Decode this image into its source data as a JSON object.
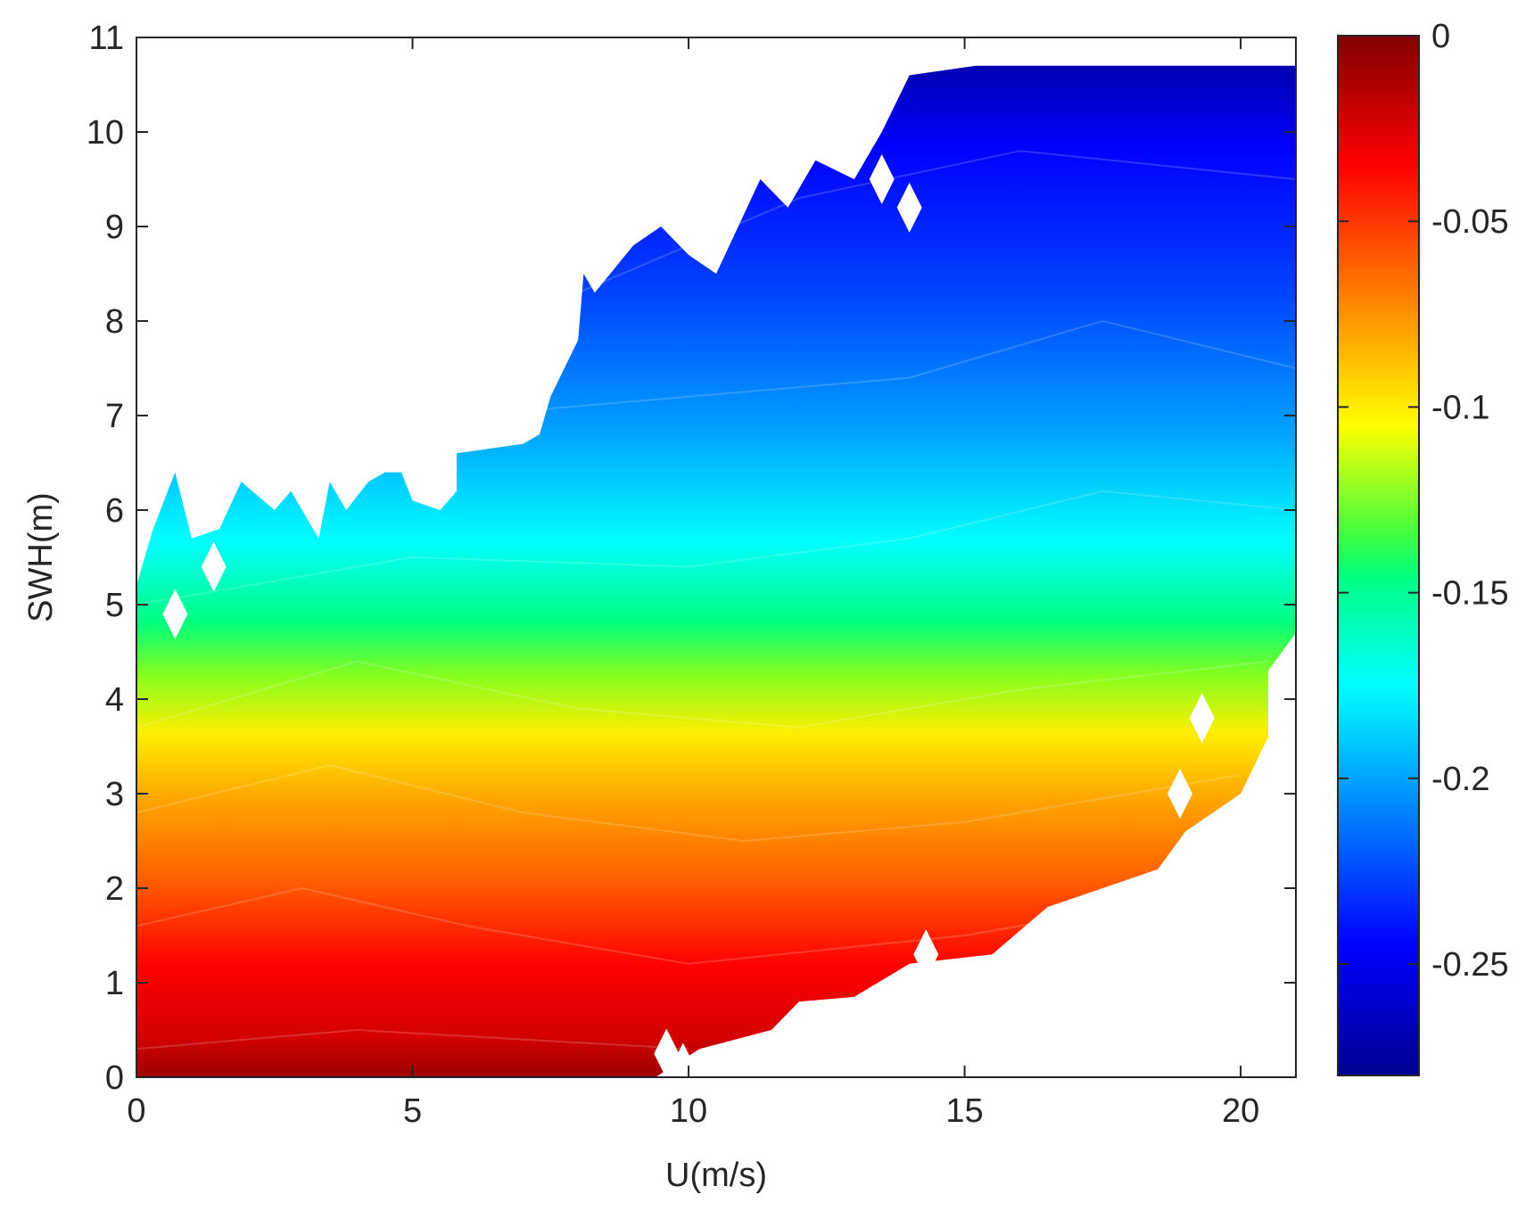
{
  "chart_data": {
    "type": "heatmap",
    "title": "",
    "xlabel": "U(m/s)",
    "ylabel": "SWH(m)",
    "xlim": [
      0,
      21
    ],
    "ylim": [
      0,
      11
    ],
    "x_ticks": [
      0,
      5,
      10,
      15,
      20
    ],
    "y_ticks": [
      0,
      1,
      2,
      3,
      4,
      5,
      6,
      7,
      8,
      9,
      10,
      11
    ],
    "grid": false,
    "colormap": "jet",
    "colorbar": {
      "range": [
        -0.28,
        0
      ],
      "ticks": [
        0,
        -0.05,
        -0.1,
        -0.15,
        -0.2,
        -0.25
      ],
      "tick_labels": [
        "0",
        "-0.05",
        "-0.1",
        "-0.15",
        "-0.2",
        "-0.25"
      ],
      "colors": [
        "#00008f",
        "#0000ff",
        "#00ffff",
        "#ffff00",
        "#ff0000",
        "#800000"
      ]
    },
    "contour_field": {
      "description_of_values": "filled contours of value vs U (x) and SWH (y); value shown as contour of SWH level per wind speed",
      "iso_lines": [
        {
          "value": -0.01,
          "swh": [
            {
              "u": 0,
              "y": 0.3
            },
            {
              "u": 4,
              "y": 0.5
            },
            {
              "u": 10,
              "y": 0.3
            }
          ]
        },
        {
          "value": -0.04,
          "swh": [
            {
              "u": 0,
              "y": 1.6
            },
            {
              "u": 3,
              "y": 2.0
            },
            {
              "u": 6,
              "y": 1.6
            },
            {
              "u": 10,
              "y": 1.2
            },
            {
              "u": 15,
              "y": 1.5
            },
            {
              "u": 20,
              "y": 2.0
            }
          ]
        },
        {
          "value": -0.08,
          "swh": [
            {
              "u": 0,
              "y": 2.8
            },
            {
              "u": 3.5,
              "y": 3.3
            },
            {
              "u": 7,
              "y": 2.8
            },
            {
              "u": 11,
              "y": 2.5
            },
            {
              "u": 15,
              "y": 2.7
            },
            {
              "u": 20,
              "y": 3.2
            }
          ]
        },
        {
          "value": -0.12,
          "swh": [
            {
              "u": 0,
              "y": 3.7
            },
            {
              "u": 4,
              "y": 4.4
            },
            {
              "u": 8,
              "y": 3.9
            },
            {
              "u": 12,
              "y": 3.7
            },
            {
              "u": 16,
              "y": 4.1
            },
            {
              "u": 20.5,
              "y": 4.4
            }
          ]
        },
        {
          "value": -0.17,
          "swh": [
            {
              "u": 0,
              "y": 5.0
            },
            {
              "u": 5,
              "y": 5.5
            },
            {
              "u": 10,
              "y": 5.4
            },
            {
              "u": 14,
              "y": 5.7
            },
            {
              "u": 17.5,
              "y": 6.2
            },
            {
              "u": 21,
              "y": 6.0
            }
          ]
        },
        {
          "value": -0.21,
          "swh": [
            {
              "u": 6,
              "y": 7.0
            },
            {
              "u": 10,
              "y": 7.2
            },
            {
              "u": 14,
              "y": 7.4
            },
            {
              "u": 17.5,
              "y": 8.0
            },
            {
              "u": 21,
              "y": 7.5
            }
          ]
        },
        {
          "value": -0.25,
          "swh": [
            {
              "u": 8,
              "y": 8.3
            },
            {
              "u": 12,
              "y": 9.3
            },
            {
              "u": 16,
              "y": 9.8
            },
            {
              "u": 21,
              "y": 9.5
            }
          ]
        }
      ]
    }
  }
}
